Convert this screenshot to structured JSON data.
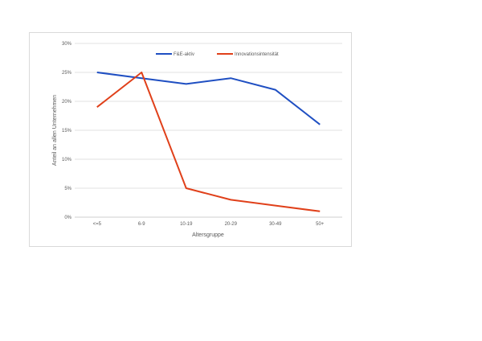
{
  "chart_data": {
    "type": "line",
    "categories": [
      "<=5",
      "6-9",
      "10-19",
      "20-29",
      "30-49",
      "50+"
    ],
    "series": [
      {
        "name": "F&E-aktiv",
        "values": [
          25,
          24,
          23,
          24,
          22,
          16
        ],
        "color": "#1f4fc2"
      },
      {
        "name": "Innovationsintensität",
        "values": [
          19,
          25,
          5,
          3,
          2,
          1
        ],
        "color": "#e0401a"
      }
    ],
    "ylim": [
      0,
      30
    ],
    "yticks": [
      0,
      5,
      10,
      15,
      20,
      25,
      30
    ],
    "ytick_suffix": "%",
    "xlabel": "Altersgruppe",
    "ylabel": "Anteil an allen Unternehmen",
    "grid": true,
    "legend_position": "top"
  }
}
